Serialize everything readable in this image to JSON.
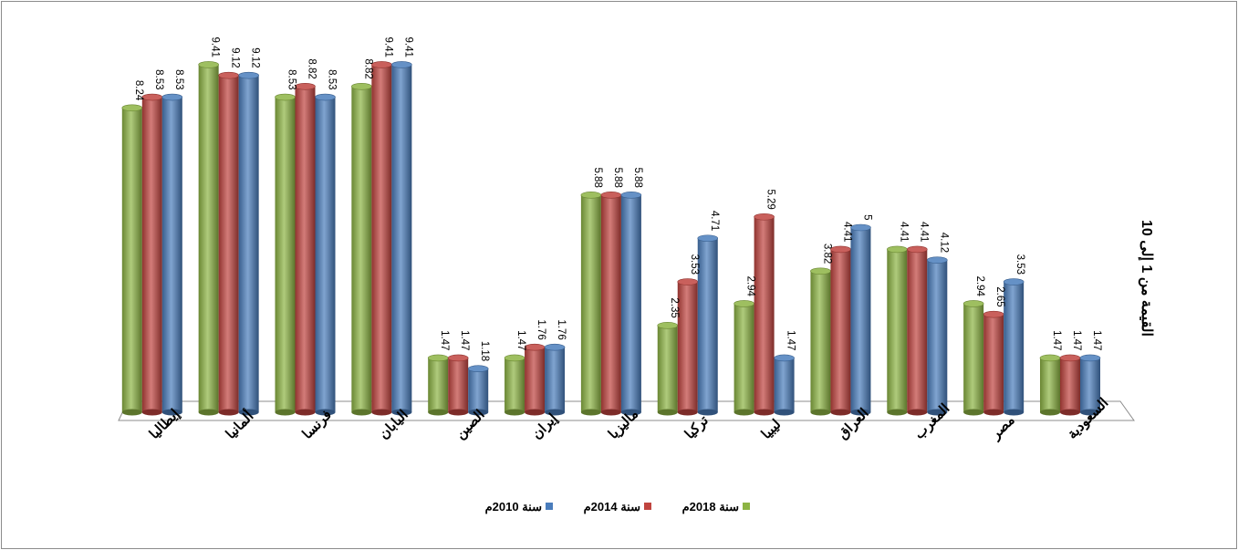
{
  "chart_data": {
    "type": "bar",
    "title": "",
    "xlabel": "",
    "ylabel": "القيمة من 1 إلى 10",
    "ylim": [
      0,
      10
    ],
    "grid": false,
    "legend_position": "bottom",
    "categories": [
      "إيطاليا",
      "ألمانيا",
      "فرنسا",
      "اليابان",
      "الصين",
      "إيران",
      "ماليزيا",
      "تركيا",
      "ليبيا",
      "العراق",
      "المغرب",
      "مصر",
      "السعودية"
    ],
    "series": [
      {
        "name": "سنة 2018م",
        "color": "#8db444",
        "values": [
          8.24,
          9.41,
          8.53,
          8.82,
          1.47,
          1.47,
          5.88,
          2.35,
          2.94,
          3.82,
          4.41,
          2.94,
          1.47
        ]
      },
      {
        "name": "سنة 2014م",
        "color": "#c0443f",
        "values": [
          8.53,
          9.12,
          8.82,
          9.41,
          1.47,
          1.76,
          5.88,
          3.53,
          5.29,
          4.41,
          4.41,
          2.65,
          1.47
        ]
      },
      {
        "name": "سنة 2010م",
        "color": "#4a7dbc",
        "values": [
          8.53,
          9.12,
          8.53,
          9.41,
          1.18,
          1.76,
          5.88,
          4.71,
          1.47,
          5,
          4.12,
          3.53,
          1.47
        ]
      }
    ]
  }
}
